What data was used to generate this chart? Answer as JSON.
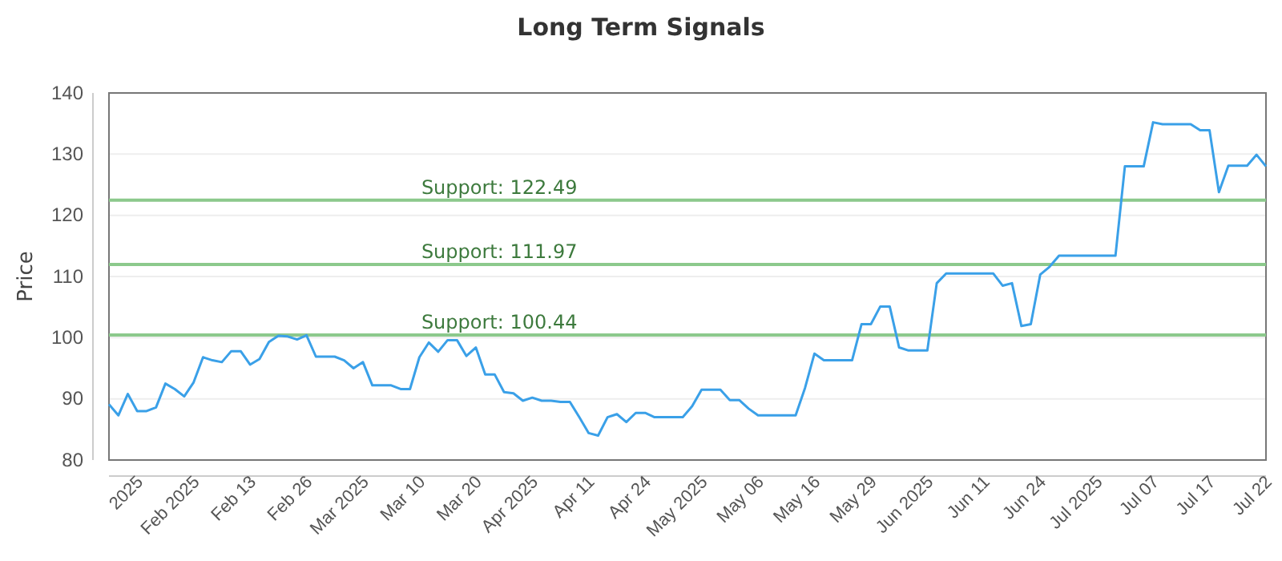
{
  "chart_data": {
    "type": "line",
    "title": "Long Term Signals",
    "ylabel": "Price",
    "categories": [
      null,
      null,
      null,
      "2025",
      null,
      null,
      null,
      null,
      null,
      "Feb 2025",
      null,
      null,
      null,
      null,
      null,
      "Feb 13",
      null,
      null,
      null,
      null,
      null,
      "Feb 26",
      null,
      null,
      null,
      null,
      null,
      "Mar 2025",
      null,
      null,
      null,
      null,
      null,
      "Mar 10",
      null,
      null,
      null,
      null,
      null,
      "Mar 20",
      null,
      null,
      null,
      null,
      null,
      "Apr 2025",
      null,
      null,
      null,
      null,
      null,
      "Apr 11",
      null,
      null,
      null,
      null,
      null,
      "Apr 24",
      null,
      null,
      null,
      null,
      null,
      "May 2025",
      null,
      null,
      null,
      null,
      null,
      "May 06",
      null,
      null,
      null,
      null,
      null,
      "May 16",
      null,
      null,
      null,
      null,
      null,
      "May 29",
      null,
      null,
      null,
      null,
      null,
      "Jun 2025",
      null,
      null,
      null,
      null,
      null,
      "Jun 11",
      null,
      null,
      null,
      null,
      null,
      "Jun 24",
      null,
      null,
      null,
      null,
      null,
      "Jul 2025",
      null,
      null,
      null,
      null,
      null,
      "Jul 07",
      null,
      null,
      null,
      null,
      null,
      "Jul 17",
      null,
      null,
      null,
      null,
      null,
      "Jul 22"
    ],
    "series": [
      {
        "color": "#3aa0e8",
        "values": [
          89.1,
          87.3,
          90.8,
          88.0,
          88.0,
          88.6,
          92.5,
          91.6,
          90.4,
          92.7,
          96.8,
          96.3,
          96.0,
          97.8,
          97.8,
          95.6,
          96.5,
          99.3,
          100.3,
          100.2,
          99.7,
          100.4,
          96.9,
          96.9,
          96.9,
          96.3,
          95.0,
          96.0,
          92.2,
          92.2,
          92.2,
          91.6,
          91.6,
          96.8,
          99.2,
          97.7,
          99.6,
          99.6,
          97.0,
          98.4,
          94.0,
          94.0,
          91.1,
          90.9,
          89.7,
          90.2,
          89.7,
          89.7,
          89.5,
          89.5,
          87.0,
          84.4,
          84.0,
          87.0,
          87.5,
          86.2,
          87.7,
          87.7,
          87.0,
          87.0,
          87.0,
          87.0,
          88.8,
          91.5,
          91.5,
          91.5,
          89.8,
          89.8,
          88.4,
          87.3,
          87.3,
          87.3,
          87.3,
          87.3,
          91.8,
          97.4,
          96.3,
          96.3,
          96.3,
          96.3,
          102.2,
          102.2,
          105.1,
          105.1,
          98.4,
          97.9,
          97.9,
          97.9,
          108.9,
          110.5,
          110.5,
          110.5,
          110.5,
          110.5,
          110.5,
          108.5,
          108.9,
          101.9,
          102.2,
          110.3,
          111.6,
          113.4,
          113.4,
          113.4,
          113.4,
          113.4,
          113.4,
          113.4,
          128.0,
          128.0,
          128.0,
          135.2,
          134.9,
          134.9,
          134.9,
          134.9,
          133.9,
          133.9,
          123.8,
          128.1,
          128.1,
          128.1,
          129.9,
          128.0
        ]
      }
    ],
    "ylim": [
      80,
      140
    ],
    "yticks": [
      80,
      90,
      100,
      110,
      120,
      130,
      140
    ],
    "grid": "y",
    "line_style": "solid",
    "marker": "none",
    "ref_lines": [
      {
        "axis": "y",
        "value": 122.49,
        "label": "Support: 122.49",
        "color": "#8cc98c"
      },
      {
        "axis": "y",
        "value": 111.97,
        "label": "Support: 111.97",
        "color": "#8cc98c"
      },
      {
        "axis": "y",
        "value": 100.44,
        "label": "Support: 100.44",
        "color": "#8cc98c"
      }
    ]
  }
}
